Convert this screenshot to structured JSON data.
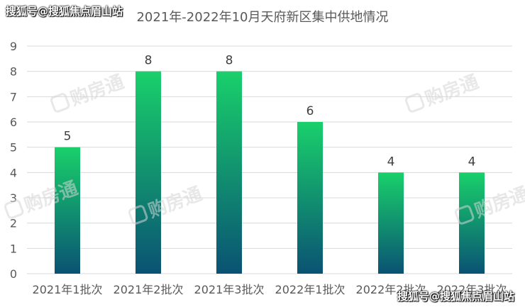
{
  "watermarks": {
    "top_left": "搜狐号@搜狐焦点眉山站",
    "bottom_right": "搜狐号@搜狐焦点眉山站",
    "brand": "购房通"
  },
  "chart_data": {
    "type": "bar",
    "title": "2021年-2022年10月天府新区集中供地情况",
    "categories": [
      "2021年1批次",
      "2021年2批次",
      "2021年3批次",
      "2022年1批次",
      "2022年2批次",
      "2022年3批次"
    ],
    "values": [
      5,
      8,
      8,
      6,
      4,
      4
    ],
    "data_labels": [
      "5",
      "8",
      "8",
      "6",
      "4",
      "4"
    ],
    "ylim": [
      0,
      9
    ],
    "yticks": [
      "0",
      "1",
      "2",
      "3",
      "4",
      "5",
      "6",
      "7",
      "8",
      "9"
    ],
    "grid": true,
    "legend": "none",
    "colors": {
      "bar_top": "#19d06b",
      "bar_bottom": "#0a5273",
      "grid": "#d9d9d9",
      "axis_text": "#595959",
      "title": "#595959",
      "label": "#404040"
    }
  }
}
